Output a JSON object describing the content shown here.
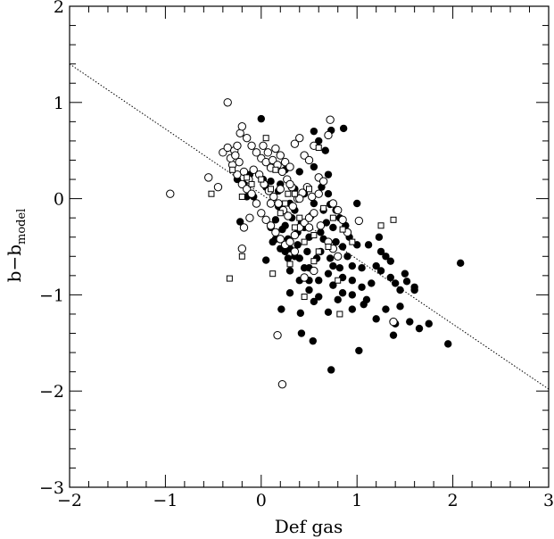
{
  "chart_data": {
    "type": "scatter",
    "title": "",
    "xlabel": "Def gas",
    "ylabel": {
      "main": "b−b",
      "subscript": "model"
    },
    "xlim": [
      -2,
      3
    ],
    "ylim": [
      -3,
      2
    ],
    "x_ticks": [
      -2,
      -1,
      0,
      1,
      2,
      3
    ],
    "y_ticks": [
      -3,
      -2,
      -1,
      0,
      1,
      2
    ],
    "x_tick_labels": [
      "−2",
      "−1",
      "0",
      "1",
      "2",
      "3"
    ],
    "y_tick_labels": [
      "−3",
      "−2",
      "−1",
      "0",
      "1",
      "2"
    ],
    "grid": false,
    "colors": {
      "axis": "#000000",
      "marker": "#000000",
      "fit_line": "#000000"
    },
    "fit_line": {
      "style": "dotted",
      "points": [
        [
          -2,
          1.4
        ],
        [
          3,
          -1.98
        ]
      ]
    },
    "series": [
      {
        "marker": "filled-circle",
        "points": [
          [
            0.0,
            0.83
          ],
          [
            0.73,
            0.71
          ],
          [
            0.86,
            0.73
          ],
          [
            0.73,
            -1.78
          ],
          [
            0.41,
            -1.19
          ],
          [
            0.54,
            -1.48
          ],
          [
            1.02,
            -1.58
          ],
          [
            1.38,
            -1.42
          ],
          [
            1.95,
            -1.51
          ],
          [
            2.08,
            -0.67
          ],
          [
            1.52,
            -0.86
          ],
          [
            1.35,
            -0.65
          ],
          [
            1.23,
            -0.4
          ],
          [
            0.21,
            -1.15
          ],
          [
            -0.22,
            -0.24
          ],
          [
            -0.25,
            0.2
          ],
          [
            -0.12,
            0.25
          ],
          [
            0.05,
            0.12
          ],
          [
            0.18,
            0.08
          ],
          [
            0.2,
            0.15
          ],
          [
            0.3,
            -0.05
          ],
          [
            0.4,
            0.28
          ],
          [
            0.55,
            0.33
          ],
          [
            0.63,
            0.12
          ],
          [
            0.7,
            0.05
          ],
          [
            0.72,
            -0.06
          ],
          [
            0.82,
            -0.2
          ],
          [
            1.0,
            -0.05
          ],
          [
            1.12,
            -0.48
          ],
          [
            1.25,
            -0.55
          ],
          [
            1.35,
            -0.82
          ],
          [
            1.45,
            -0.95
          ],
          [
            1.6,
            -0.95
          ],
          [
            1.65,
            -1.35
          ],
          [
            1.75,
            -1.3
          ],
          [
            1.55,
            -1.28
          ],
          [
            1.4,
            -1.3
          ],
          [
            1.2,
            -1.25
          ],
          [
            1.07,
            -1.1
          ],
          [
            0.95,
            -1.15
          ],
          [
            0.85,
            -0.98
          ],
          [
            0.75,
            -0.9
          ],
          [
            0.6,
            -1.02
          ],
          [
            0.5,
            -0.85
          ],
          [
            0.45,
            -0.72
          ],
          [
            0.35,
            -0.6
          ],
          [
            0.25,
            -0.55
          ],
          [
            0.15,
            -0.42
          ],
          [
            0.1,
            -0.3
          ],
          [
            0.05,
            -0.64
          ],
          [
            0.28,
            -0.62
          ],
          [
            0.38,
            -0.35
          ],
          [
            0.5,
            -0.4
          ],
          [
            0.62,
            -0.35
          ],
          [
            0.78,
            -0.45
          ],
          [
            0.9,
            -0.6
          ],
          [
            1.05,
            -0.72
          ],
          [
            0.95,
            -0.85
          ],
          [
            0.8,
            -1.05
          ],
          [
            0.7,
            -1.18
          ],
          [
            0.55,
            -1.07
          ],
          [
            0.3,
            -0.98
          ],
          [
            0.42,
            -1.4
          ],
          [
            0.15,
            -0.22
          ],
          [
            0.22,
            -0.32
          ],
          [
            0.32,
            -0.2
          ],
          [
            0.42,
            -0.25
          ],
          [
            0.52,
            -0.18
          ],
          [
            0.62,
            -0.55
          ],
          [
            0.72,
            -0.62
          ],
          [
            0.82,
            -0.72
          ],
          [
            0.92,
            -0.4
          ],
          [
            1.0,
            -0.48
          ],
          [
            0.88,
            -0.28
          ],
          [
            0.78,
            -0.12
          ],
          [
            0.68,
            -0.25
          ],
          [
            0.58,
            -0.62
          ],
          [
            0.48,
            -0.55
          ],
          [
            0.38,
            -0.48
          ],
          [
            0.28,
            -0.42
          ],
          [
            0.18,
            -0.08
          ],
          [
            0.1,
            0.18
          ],
          [
            0.02,
            0.2
          ],
          [
            -0.08,
            0.02
          ],
          [
            -0.15,
            0.02
          ],
          [
            -0.18,
            0.15
          ],
          [
            0.25,
            0.3
          ],
          [
            0.35,
            0.1
          ],
          [
            0.45,
            0.05
          ],
          [
            0.55,
            -0.05
          ],
          [
            0.65,
            -0.12
          ],
          [
            0.75,
            -0.3
          ],
          [
            0.85,
            -0.5
          ],
          [
            0.95,
            -0.7
          ],
          [
            1.05,
            -0.92
          ],
          [
            1.15,
            -0.88
          ],
          [
            1.25,
            -0.75
          ],
          [
            1.3,
            -1.15
          ],
          [
            1.45,
            -1.12
          ],
          [
            1.6,
            -0.92
          ],
          [
            1.5,
            -0.78
          ],
          [
            1.4,
            -0.88
          ],
          [
            1.3,
            -0.6
          ],
          [
            1.2,
            -0.7
          ],
          [
            0.6,
            0.6
          ],
          [
            0.67,
            0.5
          ],
          [
            0.55,
            0.7
          ],
          [
            0.7,
            0.25
          ],
          [
            0.3,
            -0.75
          ],
          [
            0.4,
            -0.85
          ],
          [
            0.5,
            -0.95
          ],
          [
            0.45,
            -0.3
          ],
          [
            0.35,
            -0.12
          ],
          [
            0.25,
            -0.28
          ],
          [
            0.12,
            -0.45
          ],
          [
            0.2,
            -0.52
          ],
          [
            0.65,
            -0.42
          ],
          [
            0.75,
            -0.7
          ],
          [
            0.85,
            -0.82
          ],
          [
            0.95,
            -1.0
          ],
          [
            1.1,
            -1.05
          ],
          [
            0.7,
            -0.78
          ],
          [
            0.6,
            -0.85
          ],
          [
            0.5,
            -0.72
          ],
          [
            0.4,
            -0.62
          ],
          [
            0.3,
            -0.52
          ]
        ]
      },
      {
        "marker": "open-circle",
        "points": [
          [
            -0.35,
            1.0
          ],
          [
            -0.95,
            0.05
          ],
          [
            0.17,
            -1.42
          ],
          [
            0.22,
            -1.93
          ],
          [
            0.72,
            0.82
          ],
          [
            0.7,
            0.66
          ],
          [
            1.38,
            -1.28
          ],
          [
            1.02,
            -0.23
          ],
          [
            -0.55,
            0.22
          ],
          [
            -0.45,
            0.12
          ],
          [
            -0.4,
            0.48
          ],
          [
            -0.35,
            0.53
          ],
          [
            -0.28,
            0.5
          ],
          [
            -0.25,
            0.55
          ],
          [
            -0.22,
            0.68
          ],
          [
            -0.2,
            0.75
          ],
          [
            -0.15,
            0.63
          ],
          [
            -0.1,
            0.55
          ],
          [
            -0.05,
            0.48
          ],
          [
            0.0,
            0.42
          ],
          [
            0.05,
            0.38
          ],
          [
            0.1,
            0.32
          ],
          [
            0.15,
            0.52
          ],
          [
            0.2,
            0.45
          ],
          [
            0.25,
            0.38
          ],
          [
            0.3,
            0.33
          ],
          [
            0.35,
            0.57
          ],
          [
            0.4,
            0.63
          ],
          [
            0.45,
            0.45
          ],
          [
            0.5,
            0.4
          ],
          [
            0.55,
            0.55
          ],
          [
            0.6,
            0.22
          ],
          [
            0.65,
            0.18
          ],
          [
            0.75,
            -0.05
          ],
          [
            0.8,
            -0.12
          ],
          [
            0.85,
            -0.22
          ],
          [
            0.9,
            -0.35
          ],
          [
            -0.3,
            0.35
          ],
          [
            -0.25,
            0.25
          ],
          [
            -0.2,
            0.15
          ],
          [
            -0.15,
            0.1
          ],
          [
            -0.1,
            0.05
          ],
          [
            -0.05,
            -0.05
          ],
          [
            0.0,
            -0.15
          ],
          [
            0.05,
            -0.22
          ],
          [
            0.1,
            -0.28
          ],
          [
            0.15,
            -0.35
          ],
          [
            0.2,
            -0.42
          ],
          [
            0.25,
            -0.48
          ],
          [
            0.3,
            -0.45
          ],
          [
            0.35,
            -0.38
          ],
          [
            0.4,
            -0.3
          ],
          [
            0.45,
            -0.25
          ],
          [
            0.5,
            -0.2
          ],
          [
            0.55,
            -0.15
          ],
          [
            -0.2,
            -0.52
          ],
          [
            -0.18,
            -0.3
          ],
          [
            -0.12,
            -0.2
          ],
          [
            -0.08,
            0.3
          ],
          [
            -0.02,
            0.25
          ],
          [
            0.03,
            0.15
          ],
          [
            0.08,
            0.08
          ],
          [
            0.13,
            0.02
          ],
          [
            0.18,
            -0.05
          ],
          [
            0.23,
            -0.12
          ],
          [
            0.28,
            -0.18
          ],
          [
            0.33,
            -0.08
          ],
          [
            0.38,
            0.0
          ],
          [
            0.43,
            0.06
          ],
          [
            0.48,
            0.12
          ],
          [
            0.53,
            0.02
          ],
          [
            -0.32,
            0.42
          ],
          [
            -0.27,
            0.45
          ],
          [
            -0.23,
            0.38
          ],
          [
            -0.18,
            0.28
          ],
          [
            -0.13,
            0.2
          ],
          [
            0.02,
            0.55
          ],
          [
            0.07,
            0.48
          ],
          [
            0.12,
            0.4
          ],
          [
            0.17,
            0.35
          ],
          [
            0.22,
            0.28
          ],
          [
            0.27,
            0.2
          ],
          [
            0.32,
            0.12
          ],
          [
            0.6,
            0.05
          ],
          [
            0.7,
            -0.45
          ],
          [
            0.8,
            -0.6
          ],
          [
            0.75,
            -0.52
          ],
          [
            0.55,
            -0.75
          ],
          [
            0.45,
            -0.82
          ],
          [
            0.62,
            -0.28
          ],
          [
            0.1,
            -0.05
          ],
          [
            0.2,
            0.1
          ],
          [
            0.3,
            0.15
          ],
          [
            0.4,
            0.0
          ],
          [
            0.5,
            -0.3
          ],
          [
            0.35,
            -0.55
          ]
        ]
      },
      {
        "marker": "open-square",
        "points": [
          [
            -0.33,
            -0.83
          ],
          [
            0.12,
            -0.78
          ],
          [
            0.45,
            -1.02
          ],
          [
            0.82,
            -1.2
          ],
          [
            1.38,
            -0.22
          ],
          [
            1.25,
            -0.28
          ],
          [
            0.6,
            0.53
          ],
          [
            0.05,
            0.63
          ],
          [
            -0.2,
            -0.6
          ],
          [
            -0.3,
            0.3
          ],
          [
            -0.52,
            0.05
          ],
          [
            -0.2,
            0.02
          ],
          [
            0.3,
            -0.68
          ],
          [
            0.55,
            -0.65
          ],
          [
            0.7,
            -0.5
          ],
          [
            0.4,
            -0.2
          ],
          [
            0.2,
            -0.15
          ],
          [
            0.1,
            0.1
          ],
          [
            0.25,
            -0.05
          ],
          [
            0.35,
            0.05
          ],
          [
            0.5,
            0.1
          ],
          [
            0.65,
            -0.1
          ],
          [
            0.75,
            -0.2
          ],
          [
            0.85,
            -0.32
          ],
          [
            0.95,
            -0.45
          ],
          [
            0.15,
            0.3
          ],
          [
            0.0,
            0.2
          ],
          [
            -0.1,
            0.15
          ],
          [
            0.45,
            -0.45
          ],
          [
            0.6,
            -0.55
          ],
          [
            0.8,
            -0.85
          ],
          [
            0.55,
            -0.38
          ],
          [
            0.35,
            -0.3
          ],
          [
            -0.15,
            0.22
          ],
          [
            0.28,
            0.05
          ]
        ]
      }
    ]
  }
}
